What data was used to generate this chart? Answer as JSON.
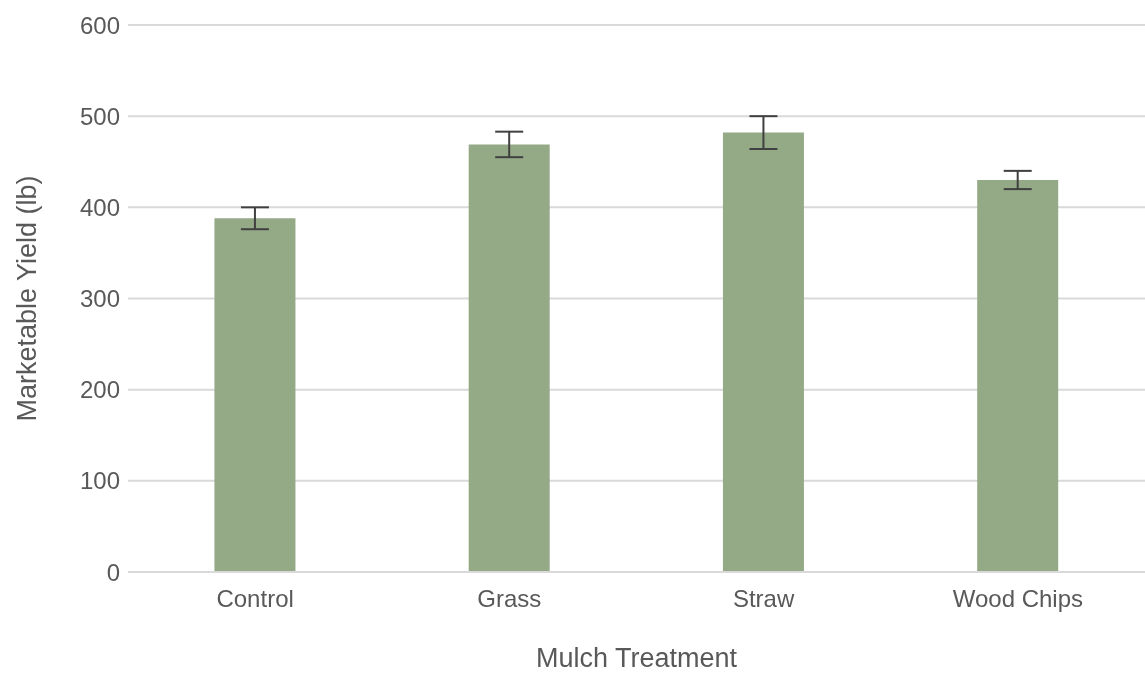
{
  "chart_data": {
    "type": "bar",
    "xlabel": "Mulch Treatment",
    "ylabel": "Marketable Yield (lb)",
    "categories": [
      "Control",
      "Grass",
      "Straw",
      "Wood Chips"
    ],
    "values": [
      388,
      469,
      482,
      430
    ],
    "errors": [
      12,
      14,
      18,
      10
    ],
    "color": "#94a986",
    "ylim": [
      0,
      600
    ],
    "yticks": [
      0,
      100,
      200,
      300,
      400,
      500,
      600
    ],
    "grid": "y"
  }
}
